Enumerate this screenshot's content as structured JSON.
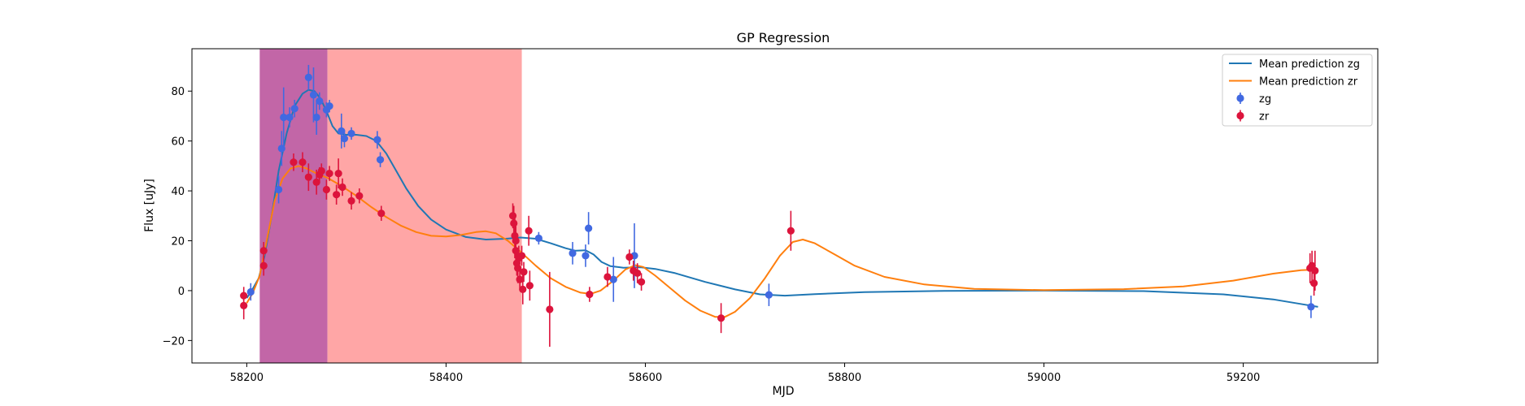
{
  "chart_data": {
    "type": "scatter",
    "title": "GP Regression",
    "xlabel": "MJD",
    "ylabel": "Flux [uJy]",
    "xlim": [
      58145,
      59335
    ],
    "ylim": [
      -29,
      97
    ],
    "xticks": [
      58200,
      58400,
      58600,
      58800,
      59000,
      59200
    ],
    "yticks": [
      -20,
      0,
      20,
      40,
      60,
      80
    ],
    "grid": false,
    "legend_position": "top-right",
    "shaded_regions": [
      {
        "x": [
          58213,
          58281
        ],
        "color": "#c266a7",
        "label": ""
      },
      {
        "x": [
          58281,
          58476
        ],
        "color": "#ffa6a6",
        "label": ""
      }
    ],
    "lines": [
      {
        "name": "Mean prediction zg",
        "color": "#1f77b4",
        "points": [
          [
            58200,
            -3
          ],
          [
            58205,
            0
          ],
          [
            58212,
            5
          ],
          [
            58218,
            14
          ],
          [
            58225,
            30
          ],
          [
            58232,
            48
          ],
          [
            58240,
            63
          ],
          [
            58248,
            74
          ],
          [
            58256,
            79
          ],
          [
            58262,
            80.5
          ],
          [
            58268,
            80
          ],
          [
            58274,
            77
          ],
          [
            58280,
            72
          ],
          [
            58286,
            66
          ],
          [
            58292,
            63
          ],
          [
            58300,
            62.5
          ],
          [
            58310,
            62.5
          ],
          [
            58320,
            62
          ],
          [
            58330,
            60
          ],
          [
            58340,
            55
          ],
          [
            58350,
            48
          ],
          [
            58360,
            41
          ],
          [
            58372,
            34
          ],
          [
            58385,
            28.5
          ],
          [
            58400,
            24.5
          ],
          [
            58420,
            21.5
          ],
          [
            58440,
            20.5
          ],
          [
            58460,
            20.8
          ],
          [
            58475,
            21.3
          ],
          [
            58490,
            20.8
          ],
          [
            58505,
            19
          ],
          [
            58520,
            17
          ],
          [
            58530,
            16
          ],
          [
            58540,
            16.2
          ],
          [
            58548,
            14.5
          ],
          [
            58556,
            11.5
          ],
          [
            58565,
            9.8
          ],
          [
            58578,
            9.2
          ],
          [
            58595,
            9.4
          ],
          [
            58610,
            8.7
          ],
          [
            58630,
            7
          ],
          [
            58660,
            3.5
          ],
          [
            58690,
            0.5
          ],
          [
            58715,
            -1.5
          ],
          [
            58740,
            -2
          ],
          [
            58770,
            -1.4
          ],
          [
            58820,
            -0.6
          ],
          [
            58900,
            -0.1
          ],
          [
            59000,
            0
          ],
          [
            59100,
            -0.2
          ],
          [
            59180,
            -1.5
          ],
          [
            59230,
            -3.5
          ],
          [
            59260,
            -5.5
          ],
          [
            59275,
            -6.5
          ]
        ]
      },
      {
        "name": "Mean prediction zr",
        "color": "#ff7f0e",
        "points": [
          [
            58200,
            -5
          ],
          [
            58206,
            -1
          ],
          [
            58213,
            6
          ],
          [
            58220,
            20
          ],
          [
            58228,
            36
          ],
          [
            58236,
            45
          ],
          [
            58244,
            49
          ],
          [
            58252,
            50
          ],
          [
            58260,
            49
          ],
          [
            58270,
            47
          ],
          [
            58282,
            45
          ],
          [
            58295,
            42
          ],
          [
            58310,
            38
          ],
          [
            58325,
            33.5
          ],
          [
            58340,
            29.5
          ],
          [
            58355,
            26
          ],
          [
            58370,
            23.5
          ],
          [
            58385,
            22
          ],
          [
            58400,
            21.7
          ],
          [
            58415,
            22.3
          ],
          [
            58430,
            23.5
          ],
          [
            58440,
            23.8
          ],
          [
            58450,
            23
          ],
          [
            58462,
            20
          ],
          [
            58475,
            15.5
          ],
          [
            58490,
            10
          ],
          [
            58505,
            5
          ],
          [
            58520,
            1.5
          ],
          [
            58535,
            -0.8
          ],
          [
            58545,
            -1.3
          ],
          [
            58555,
            0
          ],
          [
            58568,
            4
          ],
          [
            58580,
            8.5
          ],
          [
            58590,
            10.2
          ],
          [
            58598,
            9.5
          ],
          [
            58610,
            6
          ],
          [
            58625,
            1
          ],
          [
            58640,
            -4
          ],
          [
            58655,
            -8
          ],
          [
            58670,
            -10.5
          ],
          [
            58680,
            -10.5
          ],
          [
            58690,
            -8.5
          ],
          [
            58705,
            -3
          ],
          [
            58720,
            5
          ],
          [
            58735,
            14
          ],
          [
            58748,
            19.5
          ],
          [
            58758,
            20.5
          ],
          [
            58770,
            19
          ],
          [
            58790,
            14.5
          ],
          [
            58810,
            10
          ],
          [
            58840,
            5.5
          ],
          [
            58880,
            2.5
          ],
          [
            58930,
            0.7
          ],
          [
            59000,
            0.2
          ],
          [
            59080,
            0.6
          ],
          [
            59140,
            1.7
          ],
          [
            59190,
            4
          ],
          [
            59230,
            6.8
          ],
          [
            59258,
            8.2
          ],
          [
            59270,
            8.4
          ]
        ]
      }
    ],
    "series": [
      {
        "name": "zg",
        "color": "#4169e1",
        "points": [
          {
            "x": 58204,
            "y": -0.5,
            "err": 3.5
          },
          {
            "x": 58232,
            "y": 40.5,
            "err": 5.5
          },
          {
            "x": 58235,
            "y": 57,
            "err": 7
          },
          {
            "x": 58237,
            "y": 69.5,
            "err": 12
          },
          {
            "x": 58243,
            "y": 69.5,
            "err": 4
          },
          {
            "x": 58248,
            "y": 73,
            "err": 3.5
          },
          {
            "x": 58262,
            "y": 85.5,
            "err": 5
          },
          {
            "x": 58267,
            "y": 78.5,
            "err": 11
          },
          {
            "x": 58270,
            "y": 69.5,
            "err": 7
          },
          {
            "x": 58273,
            "y": 76,
            "err": 3.5
          },
          {
            "x": 58280,
            "y": 72.5,
            "err": 3
          },
          {
            "x": 58283,
            "y": 74,
            "err": 2.5
          },
          {
            "x": 58295,
            "y": 64,
            "err": 7
          },
          {
            "x": 58298,
            "y": 61,
            "err": 3.5
          },
          {
            "x": 58305,
            "y": 63,
            "err": 2.5
          },
          {
            "x": 58331,
            "y": 60.5,
            "err": 3.5
          },
          {
            "x": 58334,
            "y": 52.5,
            "err": 3
          },
          {
            "x": 58493,
            "y": 21,
            "err": 2.5
          },
          {
            "x": 58527,
            "y": 15,
            "err": 4.5
          },
          {
            "x": 58540,
            "y": 14,
            "err": 4.5
          },
          {
            "x": 58543,
            "y": 25,
            "err": 6.5
          },
          {
            "x": 58568,
            "y": 4.5,
            "err": 9
          },
          {
            "x": 58589,
            "y": 14,
            "err": 13
          },
          {
            "x": 58724,
            "y": -1.7,
            "err": 4.5
          },
          {
            "x": 59268,
            "y": -6.5,
            "err": 4.5
          }
        ]
      },
      {
        "name": "zr",
        "color": "#dc143c",
        "points": [
          {
            "x": 58197,
            "y": -2,
            "err": 3.5
          },
          {
            "x": 58197,
            "y": -6,
            "err": 5.5
          },
          {
            "x": 58217,
            "y": 16,
            "err": 3.5
          },
          {
            "x": 58217,
            "y": 10,
            "err": 4
          },
          {
            "x": 58247,
            "y": 51.5,
            "err": 3.5
          },
          {
            "x": 58256,
            "y": 51.5,
            "err": 4
          },
          {
            "x": 58262,
            "y": 45.5,
            "err": 5.5
          },
          {
            "x": 58270,
            "y": 43.5,
            "err": 5
          },
          {
            "x": 58273,
            "y": 46.5,
            "err": 3
          },
          {
            "x": 58275,
            "y": 48,
            "err": 3
          },
          {
            "x": 58280,
            "y": 40.5,
            "err": 4
          },
          {
            "x": 58283,
            "y": 47,
            "err": 3
          },
          {
            "x": 58290,
            "y": 38.5,
            "err": 4
          },
          {
            "x": 58292,
            "y": 47,
            "err": 6
          },
          {
            "x": 58296,
            "y": 41.5,
            "err": 3.5
          },
          {
            "x": 58305,
            "y": 36,
            "err": 3.5
          },
          {
            "x": 58313,
            "y": 38,
            "err": 3
          },
          {
            "x": 58335,
            "y": 31,
            "err": 3
          },
          {
            "x": 58467,
            "y": 30,
            "err": 5
          },
          {
            "x": 58468,
            "y": 27,
            "err": 7
          },
          {
            "x": 58469,
            "y": 22,
            "err": 9
          },
          {
            "x": 58470,
            "y": 20,
            "err": 6
          },
          {
            "x": 58470,
            "y": 16,
            "err": 7
          },
          {
            "x": 58471,
            "y": 11,
            "err": 5
          },
          {
            "x": 58472,
            "y": 9,
            "err": 6
          },
          {
            "x": 58473,
            "y": 13,
            "err": 5
          },
          {
            "x": 58474,
            "y": 4.5,
            "err": 4
          },
          {
            "x": 58476,
            "y": 14,
            "err": 4
          },
          {
            "x": 58477,
            "y": 0.5,
            "err": 6
          },
          {
            "x": 58478,
            "y": 7.5,
            "err": 4
          },
          {
            "x": 58483,
            "y": 24,
            "err": 6
          },
          {
            "x": 58484,
            "y": 2,
            "err": 6
          },
          {
            "x": 58504,
            "y": -7.5,
            "err": 15
          },
          {
            "x": 58544,
            "y": -1.5,
            "err": 3
          },
          {
            "x": 58562,
            "y": 5.5,
            "err": 4
          },
          {
            "x": 58584,
            "y": 13.5,
            "err": 3
          },
          {
            "x": 58588,
            "y": 8,
            "err": 4
          },
          {
            "x": 58592,
            "y": 7,
            "err": 4
          },
          {
            "x": 58596,
            "y": 3.5,
            "err": 3.5
          },
          {
            "x": 58676,
            "y": -11,
            "err": 6
          },
          {
            "x": 58746,
            "y": 24,
            "err": 8
          },
          {
            "x": 59267,
            "y": 9,
            "err": 6
          },
          {
            "x": 59269,
            "y": 10,
            "err": 6
          },
          {
            "x": 59271,
            "y": 3,
            "err": 5
          },
          {
            "x": 59272,
            "y": 8,
            "err": 8
          }
        ]
      }
    ],
    "legend": [
      {
        "label": "Mean prediction zg",
        "kind": "line",
        "color": "#1f77b4"
      },
      {
        "label": "Mean prediction zr",
        "kind": "line",
        "color": "#ff7f0e"
      },
      {
        "label": "zg",
        "kind": "errorbar",
        "color": "#4169e1"
      },
      {
        "label": "zr",
        "kind": "errorbar",
        "color": "#dc143c"
      }
    ]
  }
}
